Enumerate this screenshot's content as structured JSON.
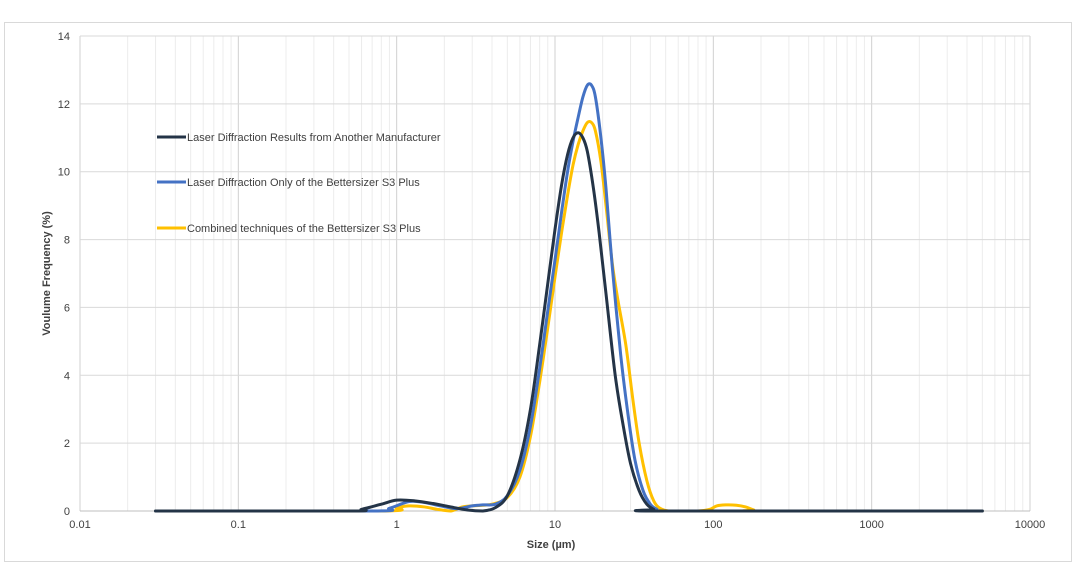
{
  "chart_data": {
    "type": "line",
    "title": "",
    "xlabel": "Size (µm)",
    "ylabel": "Voulume Frequency (%)",
    "xscale": "log",
    "xlim": [
      0.01,
      10000
    ],
    "ylim": [
      0,
      14
    ],
    "xticks": [
      0.01,
      0.1,
      1,
      10,
      100,
      1000,
      10000
    ],
    "xtick_labels": [
      "0.01",
      "0.1",
      "1",
      "10",
      "100",
      "1000",
      "10000"
    ],
    "yticks": [
      0,
      2,
      4,
      6,
      8,
      10,
      12,
      14
    ],
    "ytick_labels": [
      "0",
      "2",
      "4",
      "6",
      "8",
      "10",
      "12",
      "14"
    ],
    "grid": true,
    "legend_position": "upper-left",
    "series": [
      {
        "name": "Laser Diffraction Results from Another Manufacturer",
        "color": "#243447",
        "x": [
          0.03,
          0.5,
          0.6,
          0.8,
          1.0,
          1.3,
          1.7,
          2.2,
          2.8,
          3.5,
          4.2,
          5.0,
          6.0,
          7.0,
          8.0,
          9.0,
          10.0,
          11.0,
          12.0,
          13.0,
          14.0,
          15.0,
          16.0,
          17.5,
          19.0,
          21.0,
          24.0,
          27.0,
          30.0,
          34.0,
          38.0,
          42.0,
          46.0,
          5000
        ],
        "y": [
          0,
          0,
          0.05,
          0.2,
          0.32,
          0.3,
          0.22,
          0.12,
          0.03,
          0,
          0.1,
          0.45,
          1.5,
          3.0,
          4.9,
          6.7,
          8.3,
          9.6,
          10.5,
          11.0,
          11.15,
          11.0,
          10.6,
          9.5,
          8.2,
          6.4,
          4.0,
          2.5,
          1.4,
          0.6,
          0.2,
          0.05,
          0,
          0
        ]
      },
      {
        "name": "Laser Diffraction Only of the Bettersizer S3 Plus",
        "color": "#4472c4",
        "x": [
          0.03,
          0.7,
          0.9,
          1.2,
          1.5,
          1.9,
          2.4,
          3.0,
          3.5,
          4.2,
          5.0,
          6.0,
          7.0,
          8.0,
          9.0,
          10.0,
          11.0,
          12.0,
          13.0,
          14.0,
          15.0,
          16.0,
          17.0,
          18.0,
          19.5,
          21.0,
          23.0,
          26.0,
          29.0,
          32.0,
          36.0,
          40.0,
          44.0,
          48.0,
          5000
        ],
        "y": [
          0,
          0,
          0.08,
          0.28,
          0.25,
          0.15,
          0.07,
          0.15,
          0.18,
          0.2,
          0.45,
          1.2,
          2.5,
          4.2,
          5.9,
          7.4,
          8.8,
          10.0,
          10.9,
          11.6,
          12.2,
          12.55,
          12.55,
          12.2,
          11.0,
          9.5,
          7.2,
          4.6,
          2.8,
          1.5,
          0.6,
          0.2,
          0.05,
          0,
          0
        ]
      },
      {
        "name": "Combined techniques of the Bettersizer S3 Plus",
        "color": "#ffc000",
        "x": [
          0.03,
          0.8,
          1.0,
          1.2,
          1.5,
          1.8,
          2.2,
          2.6,
          3.2,
          4.0,
          5.0,
          6.0,
          7.0,
          8.0,
          9.0,
          10.0,
          11.0,
          12.0,
          13.0,
          14.0,
          15.0,
          16.0,
          17.0,
          18.0,
          19.5,
          21.0,
          23.0,
          25.0,
          28.0,
          31.0,
          34.0,
          38.0,
          42.0,
          46.0,
          52.0,
          60.0,
          80.0,
          95.0,
          105.0,
          120.0,
          140.0,
          160.0,
          180.0,
          200.0,
          5000
        ],
        "y": [
          0,
          0,
          0.1,
          0.15,
          0.12,
          0.05,
          0.0,
          0.12,
          0.16,
          0.2,
          0.4,
          1.0,
          2.2,
          3.8,
          5.4,
          6.9,
          8.2,
          9.3,
          10.2,
          10.8,
          11.2,
          11.45,
          11.45,
          11.2,
          10.3,
          9.0,
          7.3,
          6.2,
          4.9,
          3.3,
          2.0,
          0.9,
          0.3,
          0.08,
          0,
          0,
          0,
          0.05,
          0.15,
          0.18,
          0.17,
          0.12,
          0.03,
          0,
          0
        ]
      }
    ]
  }
}
